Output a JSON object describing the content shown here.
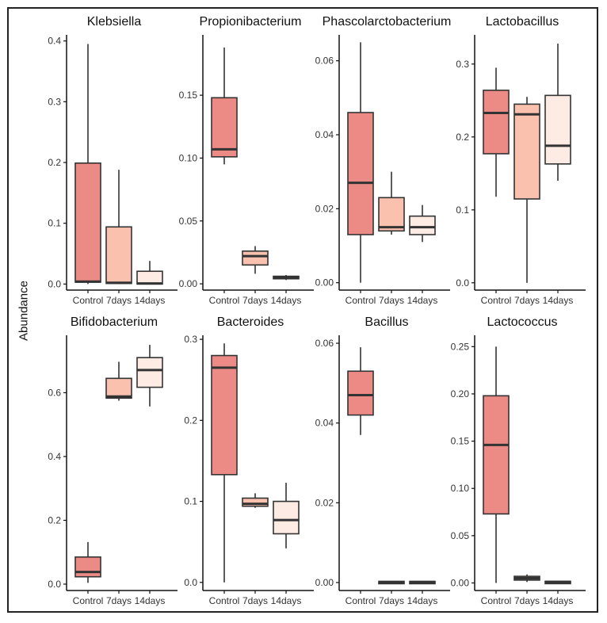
{
  "figure": {
    "ylabel": "Abundance"
  },
  "colors": {
    "control": "#ec8a86",
    "days7": "#f9c1ae",
    "days14": "#fdebe4",
    "line": "#333333"
  },
  "chart_data": [
    {
      "type": "box",
      "title": "Klebsiella",
      "categories": [
        "Control",
        "7days",
        "14days"
      ],
      "ylim": [
        -0.01,
        0.41
      ],
      "yticks": [
        0.0,
        0.1,
        0.2,
        0.3,
        0.4
      ],
      "ytick_labels": [
        "0.0",
        "0.1",
        "0.2",
        "0.3",
        "0.4"
      ],
      "boxes": [
        {
          "min": 0.0,
          "q1": 0.003,
          "median": 0.004,
          "q3": 0.199,
          "max": 0.395
        },
        {
          "min": 0.0,
          "q1": 0.001,
          "median": 0.002,
          "q3": 0.094,
          "max": 0.188
        },
        {
          "min": 0.0,
          "q1": 0.0,
          "median": 0.001,
          "q3": 0.021,
          "max": 0.038
        }
      ]
    },
    {
      "type": "box",
      "title": "Propionibacterium",
      "categories": [
        "Control",
        "7days",
        "14days"
      ],
      "ylim": [
        -0.005,
        0.198
      ],
      "yticks": [
        0.0,
        0.05,
        0.1,
        0.15
      ],
      "ytick_labels": [
        "0.00",
        "0.05",
        "0.10",
        "0.15"
      ],
      "boxes": [
        {
          "min": 0.095,
          "q1": 0.101,
          "median": 0.107,
          "q3": 0.148,
          "max": 0.188
        },
        {
          "min": 0.008,
          "q1": 0.015,
          "median": 0.022,
          "q3": 0.026,
          "max": 0.03
        },
        {
          "min": 0.003,
          "q1": 0.004,
          "median": 0.005,
          "q3": 0.006,
          "max": 0.007
        }
      ]
    },
    {
      "type": "box",
      "title": "Phascolarctobacterium",
      "categories": [
        "Control",
        "7days",
        "14days"
      ],
      "ylim": [
        -0.002,
        0.067
      ],
      "yticks": [
        0.0,
        0.02,
        0.04,
        0.06
      ],
      "ytick_labels": [
        "0.00",
        "0.02",
        "0.04",
        "0.06"
      ],
      "boxes": [
        {
          "min": 0.0,
          "q1": 0.013,
          "median": 0.027,
          "q3": 0.046,
          "max": 0.065
        },
        {
          "min": 0.013,
          "q1": 0.014,
          "median": 0.015,
          "q3": 0.023,
          "max": 0.03
        },
        {
          "min": 0.011,
          "q1": 0.013,
          "median": 0.015,
          "q3": 0.018,
          "max": 0.021
        }
      ]
    },
    {
      "type": "box",
      "title": "Lactobacillus",
      "categories": [
        "Control",
        "7days",
        "14days"
      ],
      "ylim": [
        -0.01,
        0.34
      ],
      "yticks": [
        0.0,
        0.1,
        0.2,
        0.3
      ],
      "ytick_labels": [
        "0.0",
        "0.1",
        "0.2",
        "0.3"
      ],
      "boxes": [
        {
          "min": 0.118,
          "q1": 0.177,
          "median": 0.233,
          "q3": 0.264,
          "max": 0.295
        },
        {
          "min": 0.0,
          "q1": 0.115,
          "median": 0.231,
          "q3": 0.245,
          "max": 0.255
        },
        {
          "min": 0.14,
          "q1": 0.163,
          "median": 0.188,
          "q3": 0.257,
          "max": 0.328
        }
      ]
    },
    {
      "type": "box",
      "title": "Bifidobacterium",
      "categories": [
        "Control",
        "7days",
        "14days"
      ],
      "ylim": [
        -0.02,
        0.78
      ],
      "yticks": [
        0.0,
        0.2,
        0.4,
        0.6
      ],
      "ytick_labels": [
        "0.0",
        "0.2",
        "0.4",
        "0.6"
      ],
      "boxes": [
        {
          "min": 0.004,
          "q1": 0.023,
          "median": 0.038,
          "q3": 0.085,
          "max": 0.132
        },
        {
          "min": 0.575,
          "q1": 0.583,
          "median": 0.588,
          "q3": 0.645,
          "max": 0.697
        },
        {
          "min": 0.557,
          "q1": 0.617,
          "median": 0.671,
          "q3": 0.71,
          "max": 0.75
        }
      ]
    },
    {
      "type": "box",
      "title": "Bacteroides",
      "categories": [
        "Control",
        "7days",
        "14days"
      ],
      "ylim": [
        -0.01,
        0.305
      ],
      "yticks": [
        0.0,
        0.1,
        0.2,
        0.3
      ],
      "ytick_labels": [
        "0.0",
        "0.1",
        "0.2",
        "0.3"
      ],
      "boxes": [
        {
          "min": 0.0,
          "q1": 0.133,
          "median": 0.265,
          "q3": 0.28,
          "max": 0.295
        },
        {
          "min": 0.092,
          "q1": 0.094,
          "median": 0.097,
          "q3": 0.104,
          "max": 0.11
        },
        {
          "min": 0.042,
          "q1": 0.06,
          "median": 0.077,
          "q3": 0.1,
          "max": 0.123
        }
      ]
    },
    {
      "type": "box",
      "title": "Bacillus",
      "categories": [
        "Control",
        "7days",
        "14days"
      ],
      "ylim": [
        -0.002,
        0.062
      ],
      "yticks": [
        0.0,
        0.02,
        0.04,
        0.06
      ],
      "ytick_labels": [
        "0.00",
        "0.02",
        "0.04",
        "0.06"
      ],
      "boxes": [
        {
          "min": 0.037,
          "q1": 0.042,
          "median": 0.047,
          "q3": 0.053,
          "max": 0.059
        },
        {
          "min": 0.0,
          "q1": 0.0,
          "median": 0.0,
          "q3": 0.0,
          "max": 0.0
        },
        {
          "min": 0.0,
          "q1": 0.0,
          "median": 0.0,
          "q3": 0.0,
          "max": 0.0
        }
      ]
    },
    {
      "type": "box",
      "title": "Lactococcus",
      "categories": [
        "Control",
        "7days",
        "14days"
      ],
      "ylim": [
        -0.008,
        0.262
      ],
      "yticks": [
        0.0,
        0.05,
        0.1,
        0.15,
        0.2,
        0.25
      ],
      "ytick_labels": [
        "0.00",
        "0.05",
        "0.10",
        "0.15",
        "0.20",
        "0.25"
      ],
      "boxes": [
        {
          "min": 0.0,
          "q1": 0.073,
          "median": 0.146,
          "q3": 0.198,
          "max": 0.25
        },
        {
          "min": 0.001,
          "q1": 0.003,
          "median": 0.005,
          "q3": 0.007,
          "max": 0.009
        },
        {
          "min": 0.0,
          "q1": 0.0,
          "median": 0.001,
          "q3": 0.001,
          "max": 0.002
        }
      ]
    }
  ]
}
